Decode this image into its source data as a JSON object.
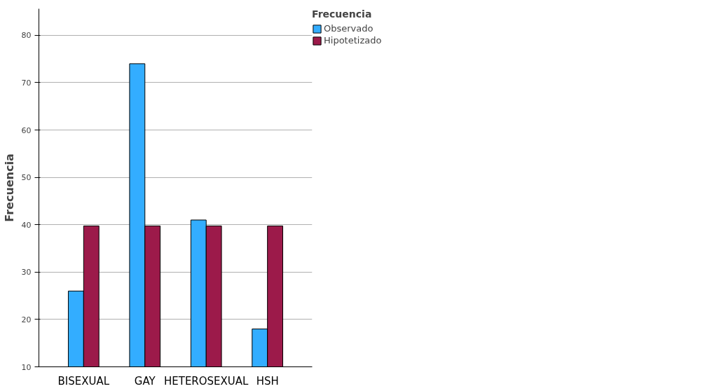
{
  "chart_data": {
    "type": "bar",
    "ylabel": "Frecuencia",
    "legend_title": "Frecuencia",
    "categories": [
      "BISEXUAL",
      "GAY",
      "HETEROSEXUAL",
      "HSH"
    ],
    "series": [
      {
        "name": "Observado",
        "color": "#33adff",
        "values": [
          26,
          74,
          41,
          18
        ]
      },
      {
        "name": "Hipotetizado",
        "color": "#9c1a4a",
        "values": [
          39.75,
          39.75,
          39.75,
          39.75
        ]
      }
    ],
    "ylim": [
      10,
      85.6
    ],
    "yticks": [
      10,
      20,
      30,
      40,
      50,
      60,
      70,
      80
    ],
    "grid": "y",
    "legend": "top right"
  }
}
